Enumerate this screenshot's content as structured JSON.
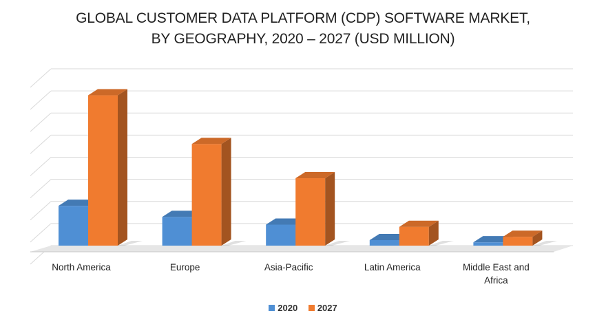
{
  "chart_data": {
    "type": "bar",
    "title_line1": "GLOBAL CUSTOMER DATA PLATFORM (CDP) SOFTWARE MARKET,",
    "title_line2": "BY GEOGRAPHY, 2020 – 2027 (USD MILLION)",
    "xlabel": "",
    "ylabel": "",
    "ylim": [
      0,
      8
    ],
    "grid": true,
    "legend_position": "bottom-center",
    "categories": [
      "North America",
      "Europe",
      "Asia-Pacific",
      "Latin America",
      [
        "Middle East and",
        "Africa"
      ]
    ],
    "series": [
      {
        "name": "2020",
        "color": "#4f8fd4",
        "values": [
          1.8,
          1.3,
          0.95,
          0.25,
          0.15
        ]
      },
      {
        "name": "2027",
        "color": "#f07b2f",
        "values": [
          6.8,
          4.6,
          3.05,
          0.85,
          0.4
        ]
      }
    ]
  }
}
